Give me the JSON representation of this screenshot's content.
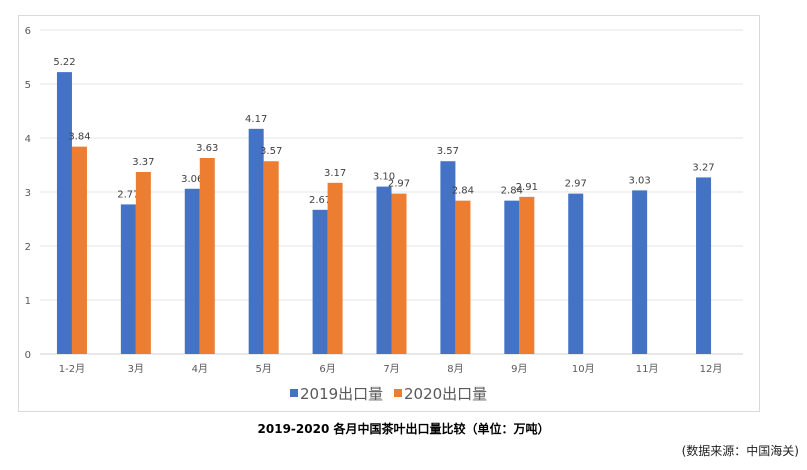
{
  "chart_data": {
    "type": "bar",
    "title": "2019-2020 各月中国茶叶出口量比较（单位：万吨）",
    "source": "(数据来源：中国海关)",
    "categories": [
      "1-2月",
      "3月",
      "4月",
      "5月",
      "6月",
      "7月",
      "8月",
      "9月",
      "10月",
      "11月",
      "12月"
    ],
    "series": [
      {
        "name": "2019出口量",
        "color": "#4472c4",
        "values": [
          5.22,
          2.77,
          3.06,
          4.17,
          2.67,
          3.1,
          3.57,
          2.84,
          2.97,
          3.03,
          3.27
        ]
      },
      {
        "name": "2020出口量",
        "color": "#ed7d31",
        "values": [
          3.84,
          3.37,
          3.63,
          3.57,
          3.17,
          2.97,
          2.84,
          2.91,
          null,
          null,
          null
        ]
      }
    ],
    "ylim": [
      0,
      6
    ],
    "yticks": [
      0,
      1,
      2,
      3,
      4,
      5,
      6
    ],
    "grid": true,
    "legend": "bottom"
  }
}
